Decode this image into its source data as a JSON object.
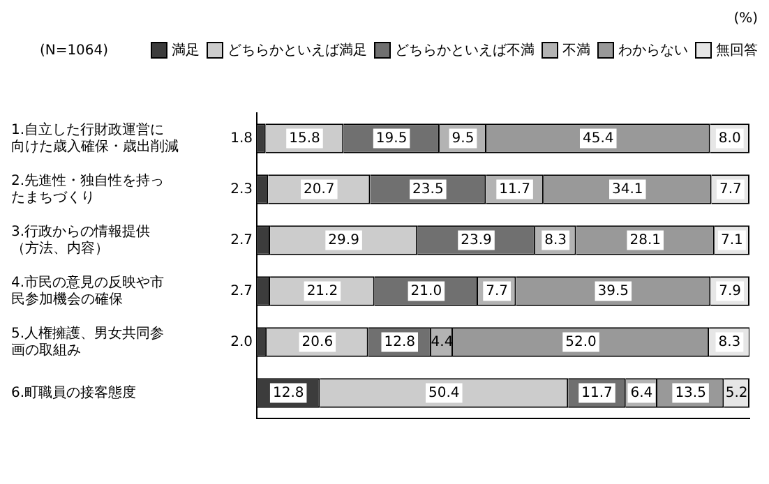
{
  "chart_data": {
    "type": "bar",
    "orientation": "horizontal",
    "stacked": true,
    "grid": false,
    "legend": "top",
    "tick_labels": "y",
    "xlim": [
      0,
      100
    ],
    "annotations": [
      "(N=1064)",
      "(%)"
    ],
    "categories": [
      "1.自立した行財政運営に向けた歳入確保・歳出削減",
      "2.先進性・独自性を持ったまちづくり",
      "3.行政からの情報提供（方法、内容）",
      "4.市民の意見の反映や市民参加機会の確保",
      "5.人権擁護、男女共同参画の取組み",
      "6.町職員の接客態度"
    ],
    "series": [
      {
        "name": "満足",
        "color": "#3c3c3c",
        "values": [
          1.8,
          2.3,
          2.7,
          2.7,
          2.0,
          12.8
        ],
        "value_labels": [
          "1.8",
          "2.3",
          "2.7",
          "2.7",
          "2.0",
          "12.8"
        ]
      },
      {
        "name": "どちらかといえば満足",
        "color": "#cccccc",
        "values": [
          15.8,
          20.7,
          29.9,
          21.2,
          20.6,
          50.4
        ],
        "value_labels": [
          "15.8",
          "20.7",
          "29.9",
          "21.2",
          "20.6",
          "50.4"
        ]
      },
      {
        "name": "どちらかといえば不満",
        "color": "#707070",
        "values": [
          19.5,
          23.5,
          23.9,
          21.0,
          12.8,
          11.7
        ],
        "value_labels": [
          "19.5",
          "23.5",
          "23.9",
          "21.0",
          "12.8",
          "11.7"
        ]
      },
      {
        "name": "不満",
        "color": "#b3b3b3",
        "values": [
          9.5,
          11.7,
          8.3,
          7.7,
          4.4,
          6.4
        ],
        "value_labels": [
          "9.5",
          "11.7",
          "8.3",
          "7.7",
          "4.4",
          "6.4"
        ]
      },
      {
        "name": "わからない",
        "color": "#999999",
        "values": [
          45.4,
          34.1,
          28.1,
          39.5,
          52.0,
          13.5
        ],
        "value_labels": [
          "45.4",
          "34.1",
          "28.1",
          "39.5",
          "52.0",
          "13.5"
        ]
      },
      {
        "name": "無回答",
        "color": "#e6e6e6",
        "values": [
          8.0,
          7.7,
          7.1,
          7.9,
          8.3,
          5.2
        ],
        "value_labels": [
          "8.0",
          "7.7",
          "7.1",
          "7.9",
          "8.3",
          "5.2"
        ]
      }
    ]
  }
}
